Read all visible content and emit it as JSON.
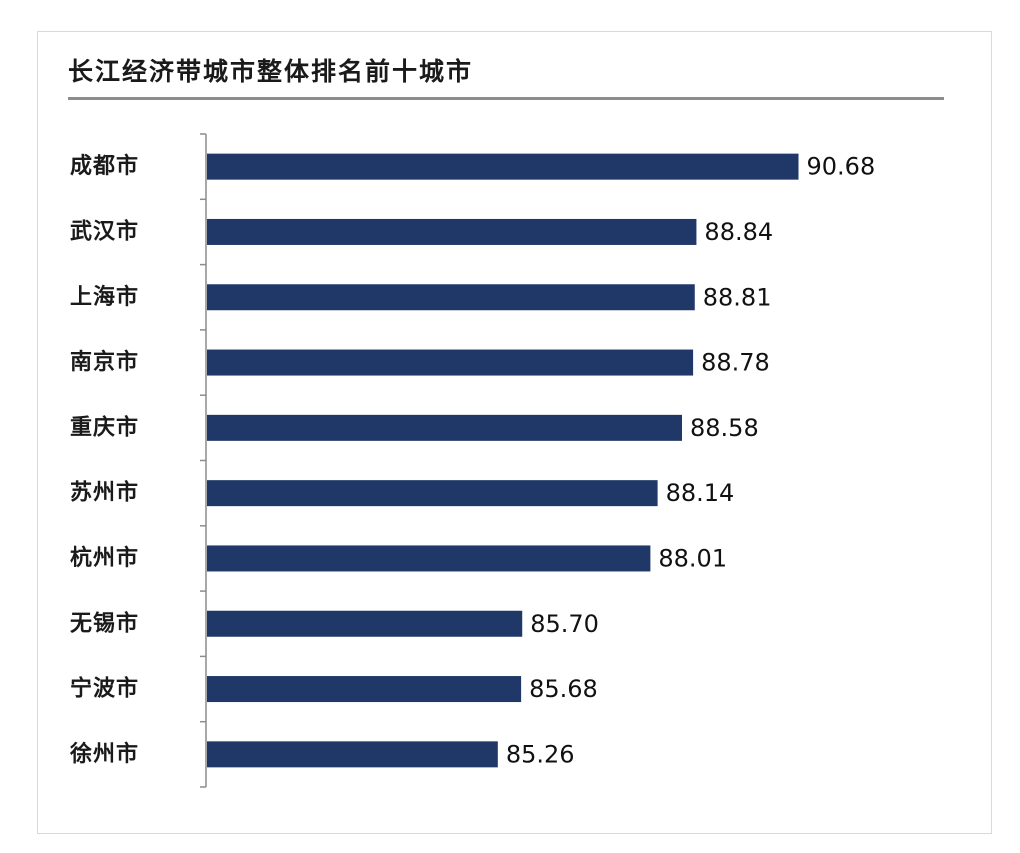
{
  "chart_data": {
    "type": "bar",
    "orientation": "horizontal",
    "title": "长江经济带城市整体排名前十城市",
    "xlabel": "",
    "ylabel": "",
    "categories": [
      "成都市",
      "武汉市",
      "上海市",
      "南京市",
      "重庆市",
      "苏州市",
      "杭州市",
      "无锡市",
      "宁波市",
      "徐州市"
    ],
    "values": [
      90.68,
      88.84,
      88.81,
      88.78,
      88.58,
      88.14,
      88.01,
      85.7,
      85.68,
      85.26
    ],
    "value_labels": [
      "90.68",
      "88.84",
      "88.81",
      "88.78",
      "88.58",
      "88.14",
      "88.01",
      "85.70",
      "85.68",
      "85.26"
    ],
    "xlim": [
      80,
      91.5
    ],
    "grid": false,
    "legend": "none",
    "bar_color": "#1f3868"
  }
}
